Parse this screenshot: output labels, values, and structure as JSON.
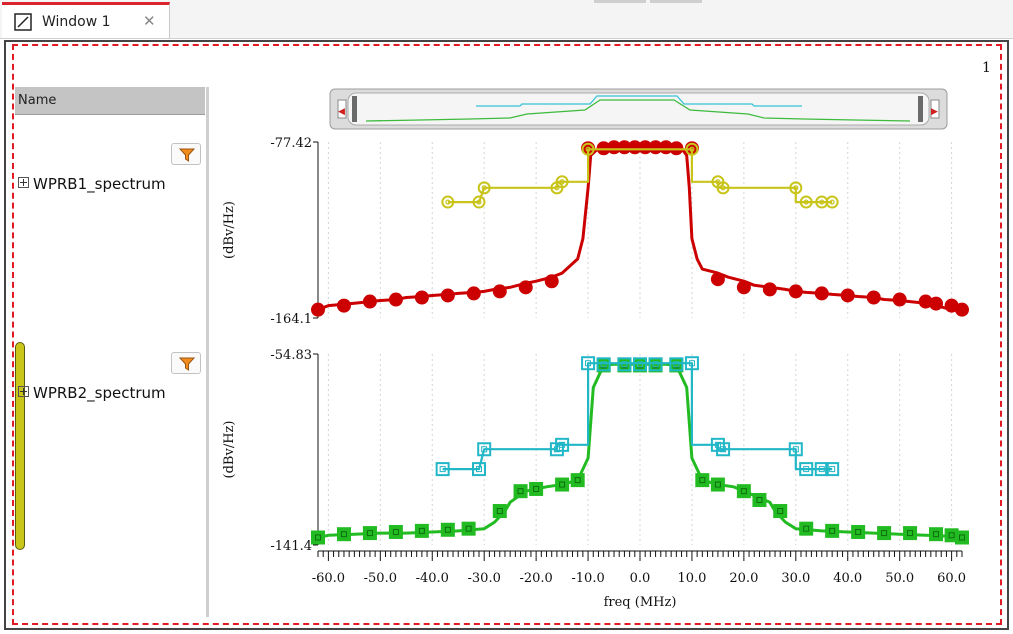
{
  "tab": {
    "title": "Window 1",
    "close_glyph": "✕",
    "icon": "window-icon"
  },
  "page_label": "1",
  "sidebar": {
    "header": "Name",
    "items": [
      {
        "label": "WPRB1_spectrum",
        "icon": "expand-plus-icon"
      },
      {
        "label": "WPRB2_spectrum",
        "icon": "expand-plus-icon"
      }
    ],
    "filter_icon": "filter-funnel-icon",
    "filter_color": "#f28c1e",
    "selection_color": "#c9c619"
  },
  "chart_data": [
    {
      "type": "line",
      "ylabel": "(dBv/Hz)",
      "ylim": [
        -164.1,
        -77.42
      ],
      "ytick_labels": [
        "-77.42",
        "-164.1"
      ],
      "xlim": [
        -62,
        62
      ],
      "series": [
        {
          "color": "#cc0000",
          "marker": "circle",
          "x": [
            -62,
            -60,
            -55,
            -52,
            -50,
            -47,
            -45,
            -42,
            -40,
            -37,
            -35,
            -32,
            -30,
            -28,
            -25,
            -22,
            -20,
            -17,
            -15,
            -12,
            -11,
            -10,
            -9.5,
            -8,
            -7,
            -5,
            -3,
            -1,
            0,
            2,
            4,
            6,
            8,
            9,
            9.5,
            10,
            11,
            12,
            15,
            17,
            20,
            22,
            25,
            28,
            30,
            32,
            35,
            37,
            40,
            42,
            45,
            47,
            50,
            52,
            55,
            57,
            60,
            62
          ],
          "y": [
            -160,
            -158,
            -156.8,
            -156,
            -155.5,
            -155,
            -154,
            -153.5,
            -153,
            -152.5,
            -152,
            -151.5,
            -151,
            -150,
            -149,
            -147,
            -146,
            -144,
            -142,
            -135,
            -125,
            -100,
            -84,
            -80.5,
            -80.5,
            -80.5,
            -80.5,
            -80.5,
            -80.5,
            -80.5,
            -80.5,
            -80.5,
            -80.5,
            -84,
            -100,
            -125,
            -135,
            -140,
            -142,
            -144,
            -146,
            -148,
            -149,
            -150,
            -151,
            -151.5,
            -152,
            -152.5,
            -153,
            -153.5,
            -154,
            -155,
            -155.5,
            -156,
            -156.8,
            -158,
            -160,
            -160.5
          ],
          "markers_x": [
            -62,
            -57,
            -52,
            -47,
            -42,
            -37,
            -32,
            -27,
            -22,
            -17,
            -10,
            -7,
            -5,
            -3,
            -1,
            1,
            3,
            5,
            7,
            10,
            15,
            20,
            25,
            30,
            35,
            40,
            45,
            50,
            55,
            57,
            60,
            62
          ],
          "markers_y": [
            -160,
            -158,
            -156,
            -155,
            -154,
            -153,
            -152,
            -151,
            -149,
            -146,
            -80.5,
            -80.5,
            -80,
            -80,
            -80,
            -80,
            -80,
            -80,
            -80.5,
            -80.5,
            -145,
            -149,
            -150,
            -151,
            -152,
            -153,
            -154,
            -155,
            -156,
            -157,
            -158,
            -160
          ]
        },
        {
          "color": "#c8c41a",
          "marker": "circle",
          "x": [
            -37,
            -31,
            -31,
            -30,
            -30,
            -16,
            -16,
            -10,
            -10,
            10,
            10,
            15,
            15,
            30,
            30,
            32,
            32,
            37
          ],
          "y": [
            -107,
            -107,
            -107,
            -100,
            -100,
            -100,
            -97,
            -97,
            -81,
            -81,
            -97,
            -97,
            -100,
            -100,
            -107,
            -107,
            -107,
            -107
          ],
          "markers_x": [
            -37,
            -31,
            -30,
            -16,
            -15,
            -10,
            10,
            15,
            16,
            30,
            32,
            35,
            37
          ],
          "markers_y": [
            -107,
            -107,
            -100,
            -100,
            -97,
            -81,
            -81,
            -97,
            -100,
            -100,
            -107,
            -107,
            -107
          ]
        }
      ]
    },
    {
      "type": "line",
      "ylabel": "(dBv/Hz)",
      "ylim": [
        -141.4,
        -54.83
      ],
      "ytick_labels": [
        "-54.83",
        "-141.4"
      ],
      "xlabel": "freq (MHz)",
      "xlim": [
        -62,
        62
      ],
      "xticks": [
        -60,
        -50,
        -40,
        -30,
        -20,
        -10,
        0,
        10,
        20,
        30,
        40,
        50,
        60
      ],
      "xtick_labels": [
        "-60.0",
        "-50.0",
        "-40.0",
        "-30.0",
        "-20.0",
        "-10.0",
        "0.0",
        "10.0",
        "20.0",
        "30.0",
        "40.0",
        "50.0",
        "60.0"
      ],
      "series": [
        {
          "color": "#22bb22",
          "marker": "square",
          "x": [
            -62,
            -60,
            -55,
            -50,
            -45,
            -40,
            -35,
            -30,
            -28,
            -26,
            -25,
            -22,
            -20,
            -18,
            -15,
            -12,
            -10,
            -9,
            -7,
            -5,
            -3,
            0,
            3,
            5,
            7,
            9,
            10,
            12,
            15,
            18,
            20,
            22,
            25,
            26,
            28,
            30,
            35,
            40,
            45,
            50,
            55,
            60,
            62
          ],
          "y": [
            -138,
            -137,
            -136.5,
            -136,
            -136,
            -135.5,
            -135,
            -134,
            -131,
            -126,
            -122,
            -117,
            -116,
            -115,
            -114,
            -112,
            -102,
            -70,
            -60,
            -59.5,
            -59.5,
            -59.5,
            -59.5,
            -59.5,
            -60,
            -70,
            -102,
            -112,
            -114,
            -115,
            -117,
            -119,
            -122,
            -126,
            -131,
            -134,
            -135,
            -135.5,
            -136,
            -136.5,
            -137,
            -137.5,
            -138
          ],
          "markers_x": [
            -62,
            -57,
            -52,
            -47,
            -42,
            -37,
            -33,
            -27,
            -23,
            -20,
            -15,
            -12,
            -7,
            -3,
            0,
            3,
            7,
            12,
            15,
            20,
            23,
            27,
            32,
            37,
            42,
            47,
            52,
            57,
            60,
            62
          ],
          "markers_y": [
            -138,
            -136.5,
            -136,
            -135.5,
            -135,
            -134.5,
            -134,
            -126,
            -117,
            -116,
            -114,
            -112,
            -60,
            -60,
            -60,
            -60,
            -60,
            -112,
            -114,
            -117,
            -121,
            -126,
            -134,
            -135,
            -135.5,
            -136,
            -136,
            -136.5,
            -137,
            -138
          ]
        },
        {
          "color": "#22b7c7",
          "marker": "square",
          "x": [
            -38,
            -31,
            -31,
            -30,
            -30,
            -16,
            -16,
            -10,
            -10,
            10,
            10,
            15,
            15,
            30,
            30,
            32,
            32,
            37
          ],
          "y": [
            -107,
            -107,
            -107,
            -98,
            -98,
            -98,
            -96,
            -96,
            -59,
            -59,
            -96,
            -96,
            -98,
            -98,
            -107,
            -107,
            -107,
            -107
          ],
          "markers_x": [
            -38,
            -31,
            -30,
            -16,
            -15,
            -10,
            -7,
            -3,
            0,
            3,
            7,
            10,
            15,
            16,
            30,
            32,
            35,
            37
          ],
          "markers_y": [
            -107,
            -107,
            -98,
            -98,
            -96,
            -59,
            -59.5,
            -59.5,
            -59.5,
            -59.5,
            -59.5,
            -59,
            -96,
            -98,
            -98,
            -107,
            -107,
            -107
          ]
        }
      ]
    }
  ],
  "overview": {
    "left_arrow": "◀",
    "right_arrow": "▶",
    "green_color": "#3dbb3d",
    "cyan_color": "#36c2d8"
  }
}
